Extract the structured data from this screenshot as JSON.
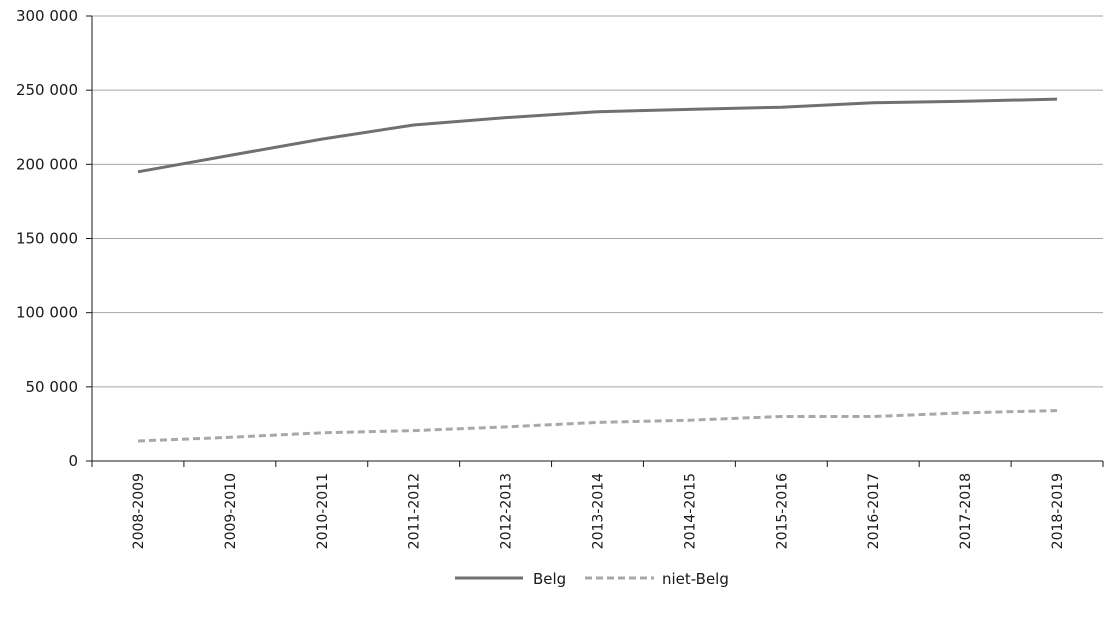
{
  "chart_data": {
    "type": "line",
    "categories": [
      "2008-2009",
      "2009-2010",
      "2010-2011",
      "2011-2012",
      "2012-2013",
      "2013-2014",
      "2014-2015",
      "2015-2016",
      "2016-2017",
      "2017-2018",
      "2018-2019"
    ],
    "series": [
      {
        "name": "Belg",
        "color": "#707070",
        "style": "solid",
        "values": [
          195000,
          206000,
          217000,
          226500,
          231500,
          235500,
          237000,
          238500,
          241500,
          242500,
          244000
        ]
      },
      {
        "name": "niet-Belg",
        "color": "#a8a8a8",
        "style": "dashed",
        "values": [
          13500,
          16000,
          19000,
          20500,
          23000,
          26000,
          27500,
          30000,
          30000,
          32500,
          34000
        ]
      }
    ],
    "yticks": [
      "0",
      "50 000",
      "100 000",
      "150 000",
      "200 000",
      "250 000",
      "300 000"
    ],
    "ylim": [
      0,
      300000
    ],
    "grid": true,
    "legend_position": "bottom-center"
  }
}
